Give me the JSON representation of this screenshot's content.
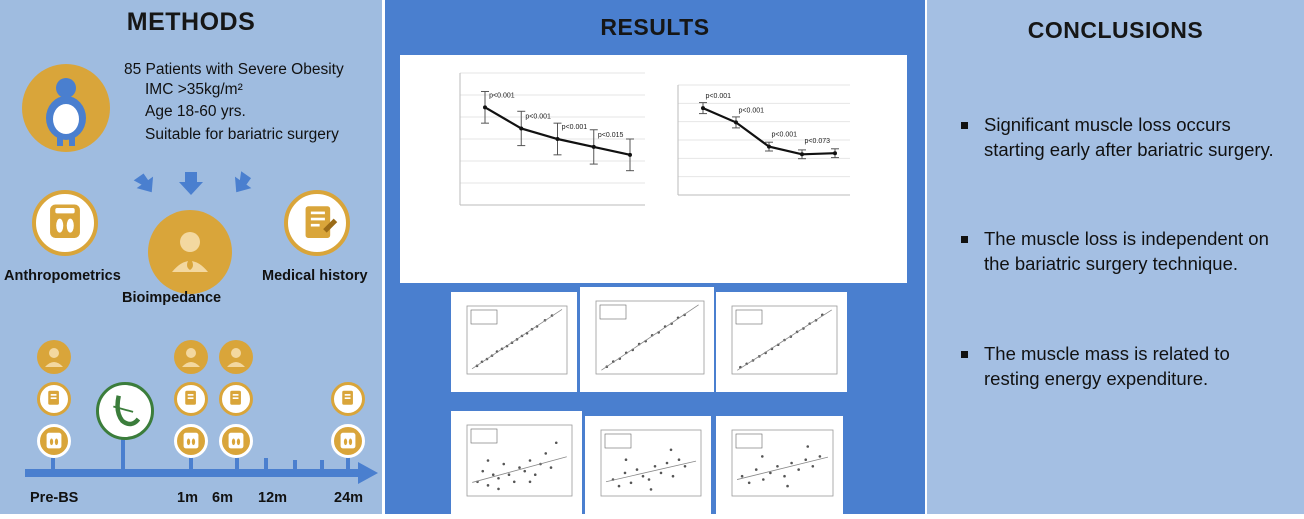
{
  "methods": {
    "title": "METHODS",
    "criteria": [
      "85 Patients with Severe Obesity",
      "IMC >35kg/m²",
      "Age 18-60 yrs.",
      "Suitable for bariatric surgery"
    ],
    "assessments": [
      "Anthropometrics",
      "Bioimpedance",
      "Medical history"
    ],
    "timeline": [
      "Pre-BS",
      "1m",
      "6m",
      "12m",
      "24m"
    ]
  },
  "results": {
    "title": "RESULTS",
    "line_charts": [
      {
        "annotations": [
          "p<0.001",
          "p<0.001",
          "p<0.001",
          "p<0.015"
        ]
      },
      {
        "annotations": [
          "p<0.001",
          "p<0.001",
          "p<0.001",
          "p<0.073"
        ]
      }
    ]
  },
  "conclusions": {
    "title": "CONCLUSIONS",
    "items": [
      "Significant muscle loss occurs starting early after bariatric surgery.",
      "The muscle loss is independent on the bariatric surgery technique.",
      "The muscle mass is related to resting energy expenditure."
    ]
  },
  "chart_data": [
    {
      "type": "line",
      "x": [
        0,
        1,
        2,
        3,
        4
      ],
      "y": [
        0.74,
        0.58,
        0.5,
        0.44,
        0.38
      ],
      "error": [
        0.12,
        0.13,
        0.12,
        0.13,
        0.12
      ],
      "annotations": [
        "p<0.001",
        "p<0.001",
        "p<0.001",
        "p<0.015"
      ]
    },
    {
      "type": "line",
      "x": [
        0,
        1,
        2,
        3,
        4
      ],
      "y": [
        0.79,
        0.66,
        0.44,
        0.37,
        0.38
      ],
      "error": [
        0.05,
        0.05,
        0.04,
        0.04,
        0.04
      ],
      "annotations": [
        "p<0.001",
        "p<0.001",
        "p<0.001",
        "p<0.073"
      ]
    },
    {
      "type": "scatter",
      "points": [
        [
          0.1,
          0.12
        ],
        [
          0.15,
          0.18
        ],
        [
          0.2,
          0.22
        ],
        [
          0.25,
          0.27
        ],
        [
          0.3,
          0.33
        ],
        [
          0.35,
          0.37
        ],
        [
          0.4,
          0.41
        ],
        [
          0.45,
          0.46
        ],
        [
          0.5,
          0.51
        ],
        [
          0.55,
          0.56
        ],
        [
          0.6,
          0.6
        ],
        [
          0.65,
          0.66
        ],
        [
          0.7,
          0.7
        ],
        [
          0.78,
          0.79
        ],
        [
          0.85,
          0.86
        ]
      ]
    },
    {
      "type": "scatter",
      "points": [
        [
          0.1,
          0.1
        ],
        [
          0.16,
          0.17
        ],
        [
          0.22,
          0.21
        ],
        [
          0.28,
          0.29
        ],
        [
          0.34,
          0.33
        ],
        [
          0.4,
          0.41
        ],
        [
          0.46,
          0.45
        ],
        [
          0.52,
          0.53
        ],
        [
          0.58,
          0.57
        ],
        [
          0.64,
          0.65
        ],
        [
          0.7,
          0.69
        ],
        [
          0.76,
          0.77
        ],
        [
          0.82,
          0.81
        ]
      ]
    },
    {
      "type": "scatter",
      "points": [
        [
          0.08,
          0.1
        ],
        [
          0.14,
          0.15
        ],
        [
          0.2,
          0.2
        ],
        [
          0.26,
          0.26
        ],
        [
          0.32,
          0.31
        ],
        [
          0.38,
          0.37
        ],
        [
          0.44,
          0.43
        ],
        [
          0.5,
          0.5
        ],
        [
          0.56,
          0.55
        ],
        [
          0.62,
          0.62
        ],
        [
          0.68,
          0.67
        ],
        [
          0.74,
          0.74
        ],
        [
          0.8,
          0.79
        ],
        [
          0.86,
          0.87
        ]
      ]
    },
    {
      "type": "scatter",
      "points": [
        [
          0.1,
          0.2
        ],
        [
          0.15,
          0.35
        ],
        [
          0.2,
          0.15
        ],
        [
          0.25,
          0.3
        ],
        [
          0.3,
          0.25
        ],
        [
          0.35,
          0.45
        ],
        [
          0.4,
          0.3
        ],
        [
          0.45,
          0.2
        ],
        [
          0.5,
          0.4
        ],
        [
          0.55,
          0.35
        ],
        [
          0.6,
          0.5
        ],
        [
          0.65,
          0.3
        ],
        [
          0.7,
          0.45
        ],
        [
          0.75,
          0.6
        ],
        [
          0.8,
          0.4
        ],
        [
          0.2,
          0.5
        ],
        [
          0.3,
          0.1
        ],
        [
          0.6,
          0.2
        ],
        [
          0.85,
          0.75
        ]
      ]
    },
    {
      "type": "scatter",
      "points": [
        [
          0.12,
          0.25
        ],
        [
          0.18,
          0.15
        ],
        [
          0.24,
          0.35
        ],
        [
          0.3,
          0.2
        ],
        [
          0.36,
          0.4
        ],
        [
          0.42,
          0.3
        ],
        [
          0.48,
          0.25
        ],
        [
          0.54,
          0.45
        ],
        [
          0.6,
          0.35
        ],
        [
          0.66,
          0.5
        ],
        [
          0.72,
          0.3
        ],
        [
          0.78,
          0.55
        ],
        [
          0.84,
          0.45
        ],
        [
          0.25,
          0.55
        ],
        [
          0.5,
          0.1
        ],
        [
          0.7,
          0.7
        ]
      ]
    },
    {
      "type": "scatter",
      "points": [
        [
          0.1,
          0.3
        ],
        [
          0.17,
          0.2
        ],
        [
          0.24,
          0.4
        ],
        [
          0.31,
          0.25
        ],
        [
          0.38,
          0.35
        ],
        [
          0.45,
          0.45
        ],
        [
          0.52,
          0.3
        ],
        [
          0.59,
          0.5
        ],
        [
          0.66,
          0.4
        ],
        [
          0.73,
          0.55
        ],
        [
          0.8,
          0.45
        ],
        [
          0.87,
          0.6
        ],
        [
          0.3,
          0.6
        ],
        [
          0.55,
          0.15
        ],
        [
          0.75,
          0.75
        ]
      ]
    }
  ]
}
